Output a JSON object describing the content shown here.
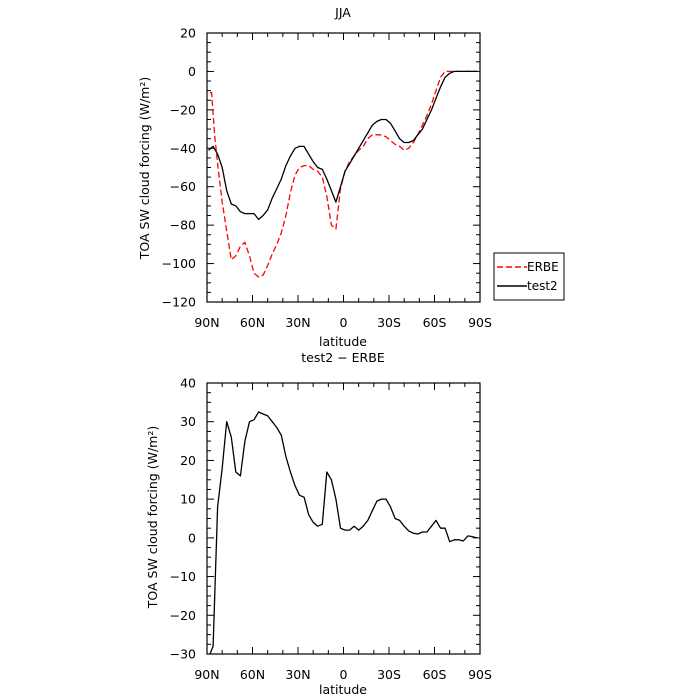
{
  "chart_data": [
    {
      "type": "line",
      "title": "JJA",
      "xlabel": "latitude",
      "ylabel": "TOA SW cloud forcing (W/m²)",
      "xlim": [
        90,
        -90
      ],
      "ylim": [
        -120,
        20
      ],
      "x_tick_values": [
        90,
        60,
        30,
        0,
        -30,
        -60,
        -90
      ],
      "x_tick_labels": [
        "90N",
        "60N",
        "30N",
        "0",
        "30S",
        "60S",
        "90S"
      ],
      "y_tick_values": [
        20,
        0,
        -20,
        -40,
        -60,
        -80,
        -100,
        -120
      ],
      "y_tick_labels": [
        "20",
        "0",
        "−20",
        "−40",
        "−60",
        "−80",
        "−100",
        "−120"
      ],
      "legend_position": "right",
      "series": [
        {
          "name": "ERBE",
          "color": "#ff0000",
          "dash": "dashed",
          "x": [
            88,
            87,
            85,
            83,
            80,
            77,
            74,
            71,
            68,
            65,
            62,
            59,
            56,
            53,
            50,
            47,
            44,
            41,
            38,
            35,
            32,
            29,
            26,
            23,
            20,
            17,
            14,
            11,
            8,
            5,
            2,
            -1,
            -4,
            -7,
            -10,
            -13,
            -16,
            -19,
            -22,
            -25,
            -28,
            -31,
            -34,
            -37,
            -40,
            -43,
            -46,
            -49,
            -52,
            -55,
            -58,
            -61,
            -64,
            -67,
            -70,
            -73,
            -76,
            -79,
            -82,
            -85,
            -88
          ],
          "y": [
            -11,
            -11,
            -33,
            -48,
            -68,
            -83,
            -98,
            -96,
            -91,
            -89,
            -96,
            -105,
            -107,
            -106,
            -101,
            -95,
            -90,
            -84,
            -75,
            -63,
            -54,
            -50,
            -49,
            -49,
            -51,
            -52,
            -55,
            -65,
            -80,
            -82,
            -61,
            -52,
            -47,
            -44,
            -41,
            -39,
            -35,
            -33,
            -33,
            -33,
            -34,
            -36,
            -38,
            -39,
            -41,
            -40,
            -37,
            -33,
            -28,
            -23,
            -17,
            -10,
            -3,
            0,
            0,
            0,
            0,
            0,
            0,
            0,
            0
          ]
        },
        {
          "name": "test2",
          "color": "#000000",
          "dash": "solid",
          "x": [
            89,
            86,
            83,
            80,
            77,
            74,
            71,
            68,
            65,
            62,
            59,
            56,
            53,
            50,
            47,
            44,
            41,
            38,
            35,
            32,
            29,
            26,
            23,
            20,
            17,
            14,
            11,
            8,
            5,
            2,
            -1,
            -4,
            -7,
            -10,
            -13,
            -16,
            -19,
            -22,
            -25,
            -28,
            -31,
            -34,
            -37,
            -40,
            -43,
            -46,
            -49,
            -52,
            -55,
            -58,
            -61,
            -64,
            -67,
            -70,
            -73,
            -76,
            -79,
            -82,
            -85,
            -88
          ],
          "y": [
            -41,
            -39,
            -43,
            -50,
            -62,
            -69,
            -70,
            -73,
            -74,
            -74,
            -74,
            -77,
            -75,
            -72,
            -66,
            -61,
            -56,
            -49,
            -44,
            -40,
            -39,
            -39,
            -43,
            -47,
            -50,
            -51,
            -56,
            -62,
            -68,
            -60,
            -52,
            -48,
            -44,
            -40,
            -36,
            -32,
            -28,
            -26,
            -25,
            -25,
            -27,
            -31,
            -35,
            -37,
            -37,
            -36,
            -33,
            -30,
            -25,
            -20,
            -14,
            -8,
            -3,
            -1,
            0,
            0,
            0,
            0,
            0,
            0
          ]
        }
      ]
    },
    {
      "type": "line",
      "title": "test2 − ERBE",
      "xlabel": "latitude",
      "ylabel": "TOA SW cloud forcing (W/m²)",
      "xlim": [
        90,
        -90
      ],
      "ylim": [
        -30,
        40
      ],
      "x_tick_values": [
        90,
        60,
        30,
        0,
        -30,
        -60,
        -90
      ],
      "x_tick_labels": [
        "90N",
        "60N",
        "30N",
        "0",
        "30S",
        "60S",
        "90S"
      ],
      "y_tick_values": [
        40,
        30,
        20,
        10,
        0,
        -10,
        -20,
        -30
      ],
      "y_tick_labels": [
        "40",
        "30",
        "20",
        "10",
        "0",
        "−10",
        "−20",
        "−30"
      ],
      "series": [
        {
          "color": "#000000",
          "dash": "solid",
          "x": [
            88,
            86,
            83,
            80,
            77,
            74,
            71,
            68,
            65,
            62,
            59,
            56,
            53,
            50,
            47,
            44,
            41,
            38,
            35,
            32,
            29,
            26,
            23,
            20,
            17,
            14,
            11,
            8,
            5,
            2,
            -1,
            -4,
            -7,
            -10,
            -13,
            -16,
            -19,
            -22,
            -25,
            -28,
            -31,
            -34,
            -37,
            -40,
            -43,
            -46,
            -49,
            -52,
            -55,
            -58,
            -61,
            -64,
            -67,
            -70,
            -73,
            -76,
            -79,
            -82,
            -85,
            -88
          ],
          "y": [
            -30,
            -28,
            8,
            18,
            30,
            26,
            17,
            16,
            25,
            30,
            30.5,
            32.5,
            32,
            31.5,
            30,
            28.5,
            26.5,
            21,
            17,
            13.5,
            11,
            10.5,
            6,
            4,
            3,
            3.5,
            17,
            15,
            10,
            2.5,
            2,
            2,
            3,
            2,
            3,
            4.5,
            7,
            9.5,
            10,
            10,
            8,
            5,
            4.5,
            3,
            1.8,
            1.2,
            1,
            1.5,
            1.5,
            3,
            4.5,
            2.5,
            2.5,
            -1,
            -0.5,
            -0.5,
            -0.8,
            0.5,
            0.3,
            0
          ]
        }
      ]
    }
  ]
}
